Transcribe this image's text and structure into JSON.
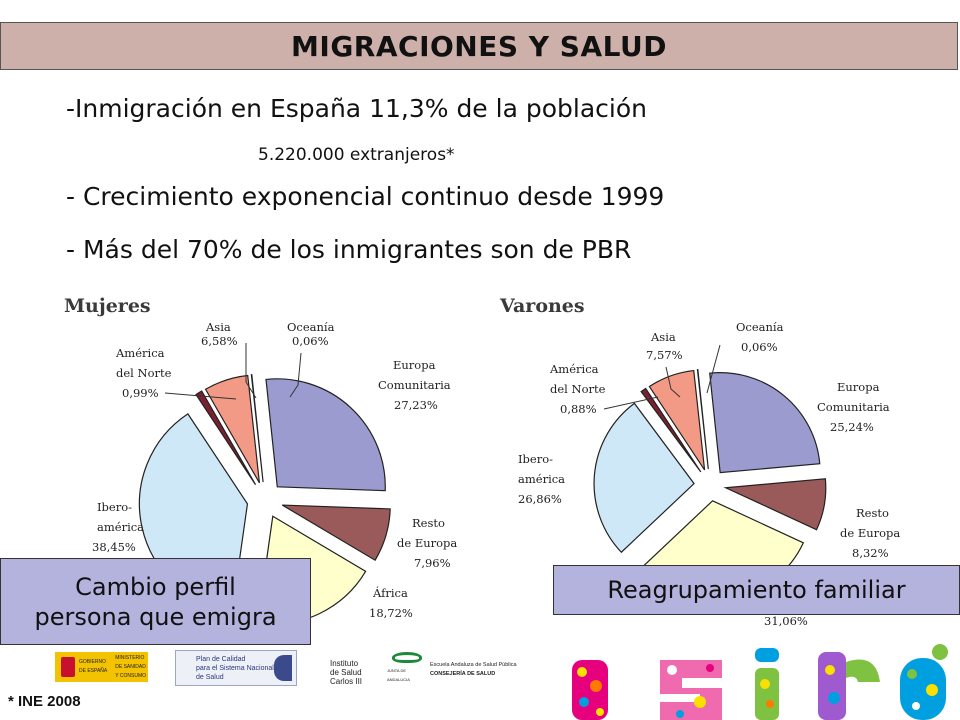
{
  "title": "MIGRACIONES Y SALUD",
  "bullets": {
    "line1": "-Inmigración en España 11,3% de la población",
    "line1b": "5.220.000 extranjeros*",
    "line2": "- Crecimiento exponencial continuo desde 1999",
    "line3": "- Más del 70% de los inmigrantes son de PBR"
  },
  "chart_data": [
    {
      "type": "pie",
      "title": "Mujeres",
      "categories": [
        "Europa Comunitaria",
        "Resto de Europa",
        "África",
        "Ibero-américa",
        "América del Norte",
        "Asia",
        "Oceanía"
      ],
      "values": [
        27.23,
        7.96,
        18.72,
        38.45,
        0.99,
        6.58,
        0.06
      ],
      "value_labels": [
        "27,23%",
        "7,96%",
        "18,72%",
        "38,45%",
        "0,99%",
        "6,58%",
        "0,06%"
      ],
      "colors": [
        "#9b9bd0",
        "#9b5a5a",
        "#ffffcc",
        "#cfe8f8",
        "#7a2030",
        "#f39a86",
        "#ffffff"
      ]
    },
    {
      "type": "pie",
      "title": "Varones",
      "categories": [
        "Europa Comunitaria",
        "Resto de Europa",
        "África",
        "Ibero-américa",
        "América del Norte",
        "Asia",
        "Oceanía"
      ],
      "values": [
        25.24,
        8.32,
        31.06,
        26.86,
        0.88,
        7.57,
        0.06
      ],
      "value_labels": [
        "25,24%",
        "8,32%",
        "31,06%",
        "26,86%",
        "0,88%",
        "7,57%",
        "0,06%"
      ],
      "colors": [
        "#9b9bd0",
        "#9b5a5a",
        "#ffffcc",
        "#cfe8f8",
        "#7a2030",
        "#f39a86",
        "#ffffff"
      ]
    }
  ],
  "labels_mujeres": {
    "asia": [
      "Asia",
      "6,58%"
    ],
    "oceania": [
      "Oceanía",
      "0,06%"
    ],
    "america_norte": [
      "América",
      "del Norte",
      "0,99%"
    ],
    "europa_com": [
      "Europa",
      "Comunitaria",
      "27,23%"
    ],
    "ibero": [
      "Ibero-",
      "américa",
      "38,45%"
    ],
    "resto": [
      "Resto",
      "de Europa",
      "7,96%"
    ],
    "africa": [
      "África",
      "18,72%"
    ]
  },
  "labels_varones": {
    "asia": [
      "Asia",
      "7,57%"
    ],
    "oceania": [
      "Oceanía",
      "0,06%"
    ],
    "america_norte": [
      "América",
      "del Norte",
      "0,88%"
    ],
    "europa_com": [
      "Europa",
      "Comunitaria",
      "25,24%"
    ],
    "ibero": [
      "Ibero-",
      "américa",
      "26,86%"
    ],
    "resto": [
      "Resto",
      "de Europa",
      "8,32%"
    ],
    "africa": [
      "31,06%"
    ]
  },
  "callouts": {
    "left_line1": "Cambio perfil",
    "left_line2": "persona que emigra",
    "right": "Reagrupamiento familiar"
  },
  "footnote": "* INE 2008",
  "logos": {
    "gob_l1": "GOBIERNO",
    "gob_l2": "DE ESPAÑA",
    "min_l1": "MINISTERIO",
    "min_l2": "DE SANIDAD",
    "min_l3": "Y CONSUMO",
    "plan_l1": "Plan de Calidad",
    "plan_l2": "para el Sistema Nacional",
    "plan_l3": "de Salud",
    "isc_l1": "Instituto",
    "isc_l2": "de Salud",
    "isc_l3": "Carlos III",
    "junta": "JUNTA DE ANDALUCIA",
    "easp_l1": "Escuela Andaluza de Salud Pública",
    "easp_l2": "CONSEJERÍA DE SALUD"
  }
}
